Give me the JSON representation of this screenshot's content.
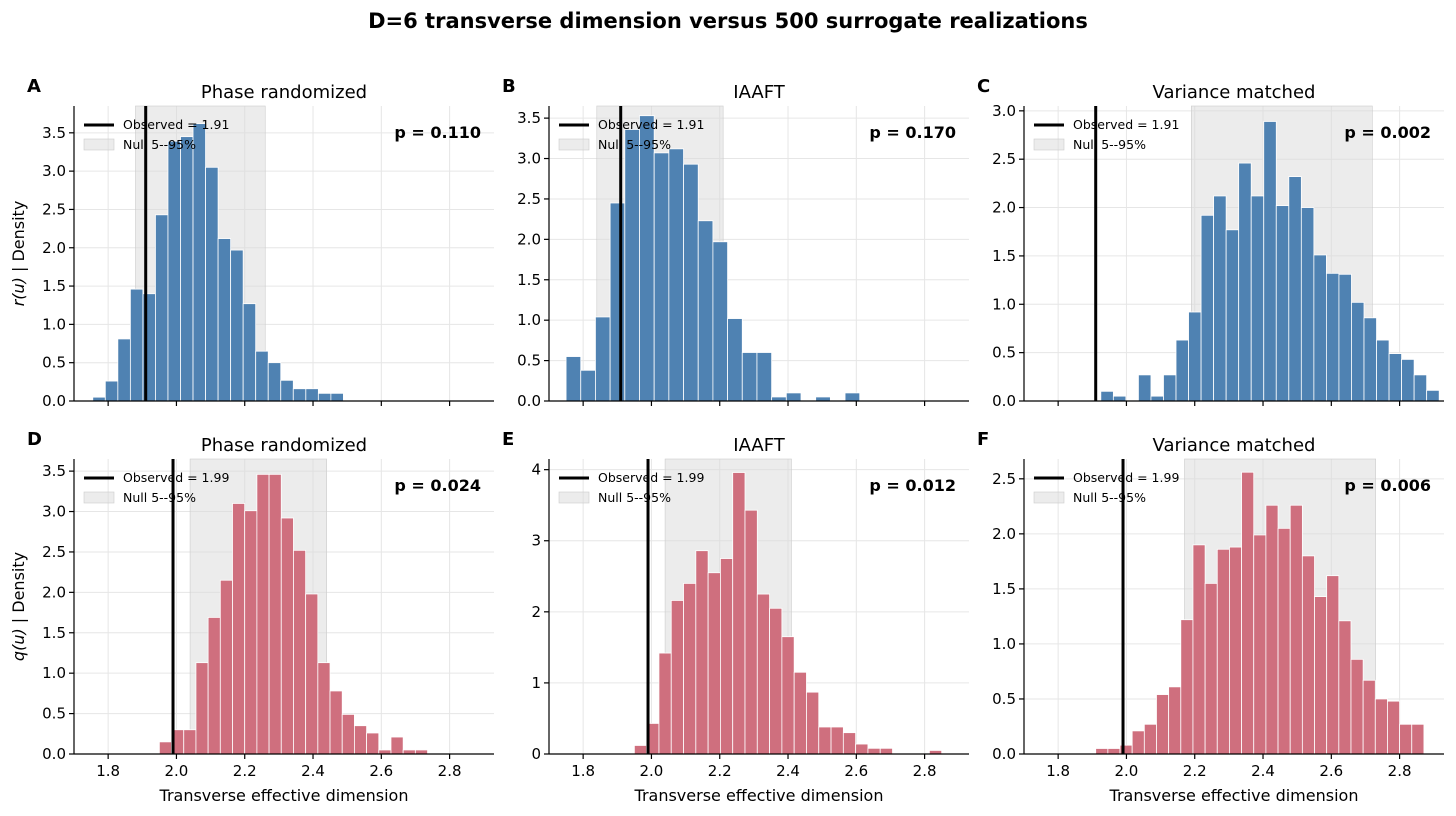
{
  "figure": {
    "title": "D=6 transverse dimension versus 500 surrogate realizations"
  },
  "chart_data": [
    {
      "type": "bar",
      "letter": "A",
      "title": "Phase randomized",
      "ylabel_italic": "r(u)",
      "ylabel_suffix": "  |  Density",
      "xlabel": "",
      "color": "#4f82b2",
      "bin_start": 1.755,
      "bin_width": 0.0367,
      "values": [
        0.05,
        0.26,
        0.81,
        1.46,
        1.4,
        2.43,
        3.39,
        3.45,
        3.62,
        3.05,
        2.12,
        1.97,
        1.27,
        0.65,
        0.5,
        0.27,
        0.16,
        0.16,
        0.1,
        0.1
      ],
      "observed": 1.91,
      "observed_label": "Observed = 1.91",
      "null_band": [
        1.88,
        2.26
      ],
      "null_label": "Null 5--95%",
      "p_text": "p = 0.110",
      "xlim": [
        1.7,
        2.93
      ],
      "ylim": [
        0,
        3.85
      ],
      "yticks": [
        0.0,
        0.5,
        1.0,
        1.5,
        2.0,
        2.5,
        3.0,
        3.5
      ],
      "ytick_labels": [
        "0.0",
        "0.5",
        "1.0",
        "1.5",
        "2.0",
        "2.5",
        "3.0",
        "3.5"
      ],
      "xticks": [
        1.8,
        2.0,
        2.2,
        2.4,
        2.6,
        2.8
      ],
      "xtick_labels": []
    },
    {
      "type": "bar",
      "letter": "B",
      "title": "IAAFT",
      "ylabel_italic": "",
      "ylabel_suffix": "",
      "xlabel": "",
      "color": "#4f82b2",
      "bin_start": 1.75,
      "bin_width": 0.043,
      "values": [
        0.55,
        0.38,
        1.04,
        2.45,
        3.36,
        3.53,
        3.07,
        3.12,
        2.93,
        2.23,
        1.97,
        1.02,
        0.6,
        0.6,
        0.05,
        0.1,
        0,
        0.05,
        0,
        0.1
      ],
      "observed": 1.91,
      "observed_label": "Observed = 1.91",
      "null_band": [
        1.84,
        2.21
      ],
      "null_label": "Null 5--95%",
      "p_text": "p = 0.170",
      "xlim": [
        1.7,
        2.93
      ],
      "ylim": [
        0,
        3.65
      ],
      "yticks": [
        0.0,
        0.5,
        1.0,
        1.5,
        2.0,
        2.5,
        3.0,
        3.5
      ],
      "ytick_labels": [
        "0.0",
        "0.5",
        "1.0",
        "1.5",
        "2.0",
        "2.5",
        "3.0",
        "3.5"
      ],
      "xticks": [
        1.8,
        2.0,
        2.2,
        2.4,
        2.6,
        2.8
      ],
      "xtick_labels": []
    },
    {
      "type": "bar",
      "letter": "C",
      "title": "Variance matched",
      "ylabel_italic": "",
      "ylabel_suffix": "",
      "xlabel": "",
      "color": "#4f82b2",
      "bin_start": 1.925,
      "bin_width": 0.0367,
      "values": [
        0.1,
        0.05,
        0,
        0.27,
        0.05,
        0.27,
        0.63,
        0.92,
        1.92,
        2.12,
        1.77,
        2.46,
        2.12,
        2.89,
        2.02,
        2.32,
        2.0,
        1.51,
        1.32,
        1.31,
        1.02,
        0.86,
        0.63,
        0.49,
        0.43,
        0.27,
        0.11
      ],
      "observed": 1.91,
      "observed_label": "Observed = 1.91",
      "null_band": [
        2.19,
        2.72
      ],
      "null_label": "Null 5--95%",
      "p_text": "p = 0.002",
      "xlim": [
        1.7,
        2.93
      ],
      "ylim": [
        0,
        3.05
      ],
      "yticks": [
        0.0,
        0.5,
        1.0,
        1.5,
        2.0,
        2.5,
        3.0
      ],
      "ytick_labels": [
        "0.0",
        "0.5",
        "1.0",
        "1.5",
        "2.0",
        "2.5",
        "3.0"
      ],
      "xticks": [
        1.8,
        2.0,
        2.2,
        2.4,
        2.6,
        2.8
      ],
      "xtick_labels": []
    },
    {
      "type": "bar",
      "letter": "D",
      "title": "Phase randomized",
      "ylabel_italic": "q(u)",
      "ylabel_suffix": "  |  Density",
      "xlabel": "Transverse effective dimension",
      "color": "#cf6f7e",
      "bin_start": 1.95,
      "bin_width": 0.0357,
      "values": [
        0.15,
        0.3,
        0.3,
        1.13,
        1.69,
        2.15,
        3.1,
        3.01,
        3.46,
        3.46,
        2.92,
        2.52,
        1.98,
        1.13,
        0.78,
        0.49,
        0.35,
        0.26,
        0.05,
        0.21,
        0.05,
        0.05
      ],
      "observed": 1.99,
      "observed_label": "Observed = 1.99",
      "null_band": [
        2.04,
        2.44
      ],
      "null_label": "Null 5--95%",
      "p_text": "p = 0.024",
      "xlim": [
        1.7,
        2.93
      ],
      "ylim": [
        0,
        3.65
      ],
      "yticks": [
        0.0,
        0.5,
        1.0,
        1.5,
        2.0,
        2.5,
        3.0,
        3.5
      ],
      "ytick_labels": [
        "0.0",
        "0.5",
        "1.0",
        "1.5",
        "2.0",
        "2.5",
        "3.0",
        "3.5"
      ],
      "xticks": [
        1.8,
        2.0,
        2.2,
        2.4,
        2.6,
        2.8
      ],
      "xtick_labels": [
        "1.8",
        "2.0",
        "2.2",
        "2.4",
        "2.6",
        "2.8"
      ]
    },
    {
      "type": "bar",
      "letter": "E",
      "title": "IAAFT",
      "ylabel_italic": "",
      "ylabel_suffix": "",
      "xlabel": "Transverse effective dimension",
      "color": "#cf6f7e",
      "bin_start": 1.95,
      "bin_width": 0.036,
      "values": [
        0.12,
        0.43,
        1.42,
        2.16,
        2.4,
        2.86,
        2.55,
        2.75,
        3.96,
        3.43,
        2.25,
        2.05,
        1.65,
        1.15,
        0.87,
        0.38,
        0.38,
        0.3,
        0.14,
        0.08,
        0.08,
        0,
        0,
        0,
        0.05
      ],
      "observed": 1.99,
      "observed_label": "Observed = 1.99",
      "null_band": [
        2.04,
        2.41
      ],
      "null_label": "Null 5--95%",
      "p_text": "p = 0.012",
      "xlim": [
        1.7,
        2.93
      ],
      "ylim": [
        0,
        4.15
      ],
      "yticks": [
        0,
        1,
        2,
        3,
        4
      ],
      "ytick_labels": [
        "0",
        "1",
        "2",
        "3",
        "4"
      ],
      "xticks": [
        1.8,
        2.0,
        2.2,
        2.4,
        2.6,
        2.8
      ],
      "xtick_labels": [
        "1.8",
        "2.0",
        "2.2",
        "2.4",
        "2.6",
        "2.8"
      ]
    },
    {
      "type": "bar",
      "letter": "F",
      "title": "Variance matched",
      "ylabel_italic": "",
      "ylabel_suffix": "",
      "xlabel": "Transverse effective dimension",
      "color": "#cf6f7e",
      "bin_start": 1.91,
      "bin_width": 0.0356,
      "values": [
        0.05,
        0.05,
        0.08,
        0.21,
        0.27,
        0.54,
        0.61,
        1.22,
        1.9,
        1.55,
        1.86,
        1.88,
        2.56,
        1.99,
        2.26,
        2.05,
        2.26,
        1.8,
        1.43,
        1.62,
        1.21,
        0.86,
        0.67,
        0.5,
        0.48,
        0.27,
        0.27
      ],
      "observed": 1.99,
      "observed_label": "Observed = 1.99",
      "null_band": [
        2.17,
        2.73
      ],
      "null_label": "Null 5--95%",
      "p_text": "p = 0.006",
      "xlim": [
        1.7,
        2.93
      ],
      "ylim": [
        0,
        2.68
      ],
      "yticks": [
        0.0,
        0.5,
        1.0,
        1.5,
        2.0,
        2.5
      ],
      "ytick_labels": [
        "0.0",
        "0.5",
        "1.0",
        "1.5",
        "2.0",
        "2.5"
      ],
      "xticks": [
        1.8,
        2.0,
        2.2,
        2.4,
        2.6,
        2.8
      ],
      "xtick_labels": [
        "1.8",
        "2.0",
        "2.2",
        "2.4",
        "2.6",
        "2.8"
      ]
    }
  ]
}
